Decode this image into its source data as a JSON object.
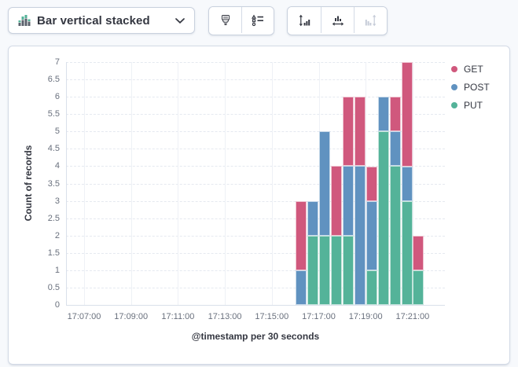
{
  "toolbar": {
    "chart_switcher": {
      "label": "Bar vertical stacked"
    },
    "button_groups": [
      {
        "buttons": [
          {
            "name": "visual-options",
            "icon": "paintbrush-icon",
            "disabled": false
          },
          {
            "name": "legend-settings",
            "icon": "legend-list-icon",
            "disabled": false
          }
        ]
      },
      {
        "buttons": [
          {
            "name": "left-axis",
            "icon": "axis-left-icon",
            "disabled": false
          },
          {
            "name": "bottom-axis",
            "icon": "axis-bottom-icon",
            "disabled": false
          },
          {
            "name": "right-axis",
            "icon": "axis-right-icon",
            "disabled": true
          }
        ]
      }
    ]
  },
  "chart_data": {
    "type": "bar",
    "stacked": true,
    "orientation": "vertical",
    "ylabel": "Count of records",
    "xlabel": "@timestamp per 30 seconds",
    "ylim": [
      0,
      7
    ],
    "y_ticks": [
      "0",
      "0.5",
      "1",
      "1.5",
      "2",
      "2.5",
      "3",
      "3.5",
      "4",
      "4.5",
      "5",
      "5.5",
      "6",
      "6.5",
      "7"
    ],
    "x_ticks": [
      "17:07:00",
      "17:09:00",
      "17:11:00",
      "17:13:00",
      "17:15:00",
      "17:17:00",
      "17:19:00",
      "17:21:00"
    ],
    "grid": true,
    "legend_position": "right",
    "categories": [
      "17:16:00",
      "17:16:30",
      "17:17:00",
      "17:17:30",
      "17:18:00",
      "17:18:30",
      "17:19:00",
      "17:19:30",
      "17:20:00",
      "17:20:30",
      "17:21:00"
    ],
    "series": [
      {
        "name": "GET",
        "color": "#d0587d",
        "values": [
          2,
          0,
          0,
          2,
          2,
          2,
          1,
          0,
          1,
          3,
          1
        ]
      },
      {
        "name": "POST",
        "color": "#6092c0",
        "values": [
          1,
          1,
          3,
          0,
          2,
          4,
          2,
          1,
          1,
          1,
          0
        ]
      },
      {
        "name": "PUT",
        "color": "#54b399",
        "values": [
          0,
          2,
          2,
          2,
          2,
          0,
          1,
          5,
          4,
          3,
          1
        ]
      }
    ],
    "stack_order_bottom_to_top": [
      "PUT",
      "POST",
      "GET"
    ]
  }
}
